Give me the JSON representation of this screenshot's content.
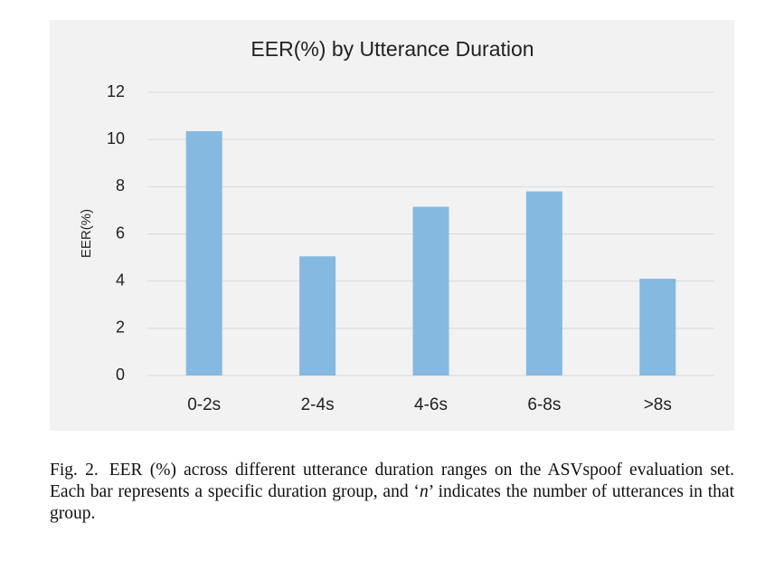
{
  "chart_data": {
    "type": "bar",
    "title": "EER(%) by Utterance Duration",
    "y_label": "EER(%)",
    "categories": [
      "0-2s",
      "2-4s",
      "4-6s",
      "6-8s",
      ">8s"
    ],
    "values": [
      10.35,
      5.05,
      7.15,
      7.8,
      4.1
    ],
    "color": "#85b9e0",
    "ylim": [
      0,
      12
    ],
    "yticks": [
      0,
      2,
      4,
      6,
      8,
      10,
      12
    ],
    "grid": true
  },
  "caption": {
    "label": "Fig. 2.",
    "before": "EER (%) across different utterance duration ranges on the ASVspoof evaluation set. Each bar represents a specific duration group, and ‘",
    "emph": "n",
    "after": "’ indicates the number of utterances in that group."
  }
}
